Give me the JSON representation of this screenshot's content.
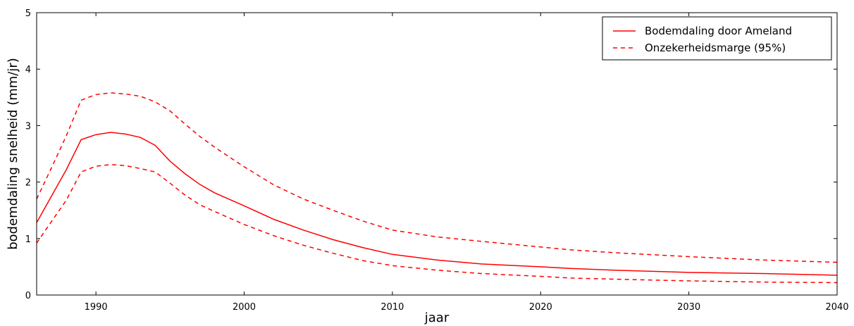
{
  "chart_data": {
    "type": "line",
    "xlabel": "jaar",
    "ylabel": "bodemdaling snelheid (mm/jr)",
    "xlim": [
      1986,
      2040
    ],
    "ylim": [
      0,
      5
    ],
    "xticks": [
      1990,
      2000,
      2010,
      2020,
      2030,
      2040
    ],
    "yticks": [
      0,
      1,
      2,
      3,
      4,
      5
    ],
    "grid": false,
    "legend_position": "top-right",
    "series": [
      {
        "name": "Bodemdaling door Ameland",
        "style": "solid",
        "color": "#ff0000",
        "x": [
          1986,
          1987,
          1988,
          1989,
          1990,
          1991,
          1992,
          1993,
          1994,
          1995,
          1996,
          1997,
          1998,
          2000,
          2002,
          2004,
          2006,
          2008,
          2010,
          2013,
          2016,
          2020,
          2022,
          2025,
          2030,
          2035,
          2040
        ],
        "y": [
          1.28,
          1.75,
          2.22,
          2.75,
          2.84,
          2.88,
          2.85,
          2.79,
          2.65,
          2.37,
          2.15,
          1.96,
          1.81,
          1.58,
          1.34,
          1.15,
          0.98,
          0.84,
          0.72,
          0.62,
          0.55,
          0.5,
          0.47,
          0.44,
          0.4,
          0.38,
          0.35
        ]
      },
      {
        "name": "Onzekerheidsmarge (95%)",
        "style": "dashed",
        "color": "#ff0000",
        "x": [
          1986,
          1987,
          1988,
          1989,
          1990,
          1991,
          1992,
          1993,
          1994,
          1995,
          1996,
          1997,
          1998,
          2000,
          2002,
          2004,
          2006,
          2008,
          2010,
          2013,
          2016,
          2020,
          2022,
          2025,
          2030,
          2035,
          2040
        ],
        "y": [
          1.7,
          2.25,
          2.82,
          3.45,
          3.55,
          3.58,
          3.56,
          3.52,
          3.42,
          3.26,
          3.03,
          2.81,
          2.62,
          2.27,
          1.95,
          1.7,
          1.5,
          1.31,
          1.15,
          1.03,
          0.95,
          0.85,
          0.8,
          0.75,
          0.68,
          0.62,
          0.58
        ]
      },
      {
        "style": "dashed",
        "color": "#ff0000",
        "x": [
          1986,
          1987,
          1988,
          1989,
          1990,
          1991,
          1992,
          1993,
          1994,
          1995,
          1996,
          1997,
          1998,
          2000,
          2002,
          2004,
          2006,
          2008,
          2010,
          2013,
          2016,
          2020,
          2022,
          2025,
          2030,
          2035,
          2040
        ],
        "y": [
          0.92,
          1.3,
          1.68,
          2.18,
          2.28,
          2.31,
          2.29,
          2.24,
          2.18,
          1.98,
          1.77,
          1.6,
          1.48,
          1.25,
          1.05,
          0.88,
          0.74,
          0.61,
          0.52,
          0.44,
          0.38,
          0.33,
          0.3,
          0.28,
          0.25,
          0.23,
          0.22
        ]
      }
    ]
  }
}
